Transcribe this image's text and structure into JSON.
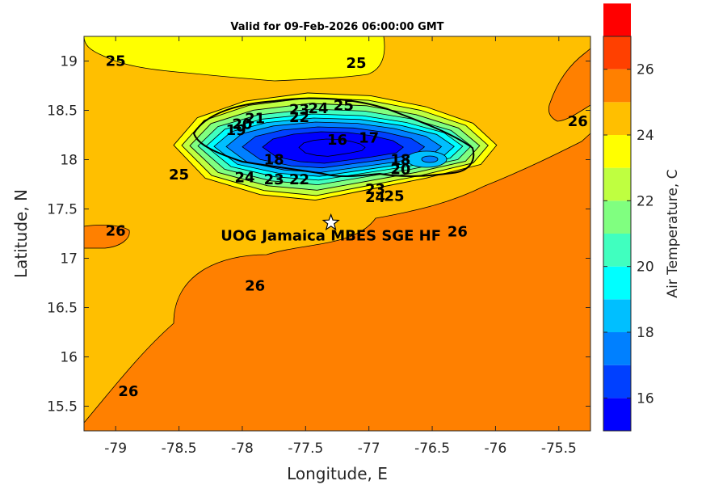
{
  "chart_data": {
    "type": "contour",
    "title": "Valid for 09-Feb-2026 06:00:00 GMT",
    "xlabel": "Longitude, E",
    "ylabel": "Latitude, N",
    "xlim": [
      -79.25,
      -75.25
    ],
    "ylim": [
      15.25,
      19.25
    ],
    "xticks": [
      -79,
      -78.5,
      -78,
      -77.5,
      -77,
      -76.5,
      -76,
      -75.5
    ],
    "xtick_labels": [
      "-79",
      "-78.5",
      "-78",
      "-77.5",
      "-77",
      "-76.5",
      "-76",
      "-75.5"
    ],
    "yticks": [
      15.5,
      16,
      16.5,
      17,
      17.5,
      18,
      18.5,
      19
    ],
    "ytick_labels": [
      "15.5",
      "16",
      "16.5",
      "17",
      "17.5",
      "18",
      "18.5",
      "19"
    ],
    "colorbar": {
      "label": "Air Temperature, C",
      "range": [
        15,
        27
      ],
      "ticks": [
        16,
        18,
        20,
        22,
        24,
        26
      ],
      "tick_labels": [
        "16",
        "18",
        "20",
        "22",
        "24",
        "26"
      ],
      "colors": [
        "#0000ff",
        "#0040ff",
        "#0080ff",
        "#00bfff",
        "#00ffff",
        "#40ffbf",
        "#80ff80",
        "#bfff40",
        "#ffff00",
        "#ffbf00",
        "#ff8000",
        "#ff4000",
        "#ff0000"
      ]
    },
    "contour_labels": [
      {
        "text": "25",
        "lon": -79.0,
        "lat": 19.0
      },
      {
        "text": "25",
        "lon": -77.1,
        "lat": 18.98
      },
      {
        "text": "25",
        "lon": -77.2,
        "lat": 18.55
      },
      {
        "text": "26",
        "lon": -75.35,
        "lat": 18.39
      },
      {
        "text": "26",
        "lon": -79.0,
        "lat": 17.28
      },
      {
        "text": "26",
        "lon": -77.9,
        "lat": 16.72
      },
      {
        "text": "26",
        "lon": -76.3,
        "lat": 17.27
      },
      {
        "text": "26",
        "lon": -78.9,
        "lat": 15.65
      },
      {
        "text": "25",
        "lon": -78.5,
        "lat": 17.85
      },
      {
        "text": "24",
        "lon": -77.98,
        "lat": 17.82
      },
      {
        "text": "23",
        "lon": -77.75,
        "lat": 17.8
      },
      {
        "text": "22",
        "lon": -77.55,
        "lat": 17.8
      },
      {
        "text": "23",
        "lon": -76.95,
        "lat": 17.7
      },
      {
        "text": "24",
        "lon": -76.95,
        "lat": 17.62
      },
      {
        "text": "25",
        "lon": -76.8,
        "lat": 17.63
      },
      {
        "text": "23",
        "lon": -77.55,
        "lat": 18.51
      },
      {
        "text": "24",
        "lon": -77.4,
        "lat": 18.52
      },
      {
        "text": "22",
        "lon": -77.55,
        "lat": 18.43
      },
      {
        "text": "21",
        "lon": -77.9,
        "lat": 18.42
      },
      {
        "text": "20",
        "lon": -78.0,
        "lat": 18.36
      },
      {
        "text": "19",
        "lon": -78.05,
        "lat": 18.3
      },
      {
        "text": "18",
        "lon": -77.75,
        "lat": 18.0
      },
      {
        "text": "16",
        "lon": -77.25,
        "lat": 18.2
      },
      {
        "text": "17",
        "lon": -77.0,
        "lat": 18.22
      },
      {
        "text": "18",
        "lon": -76.75,
        "lat": 18.0
      },
      {
        "text": "20",
        "lon": -76.75,
        "lat": 17.9
      }
    ],
    "station": {
      "name": "UOG Jamaica MBES SGE HF",
      "lon": -77.3,
      "lat": 17.36,
      "marker": "star"
    }
  }
}
